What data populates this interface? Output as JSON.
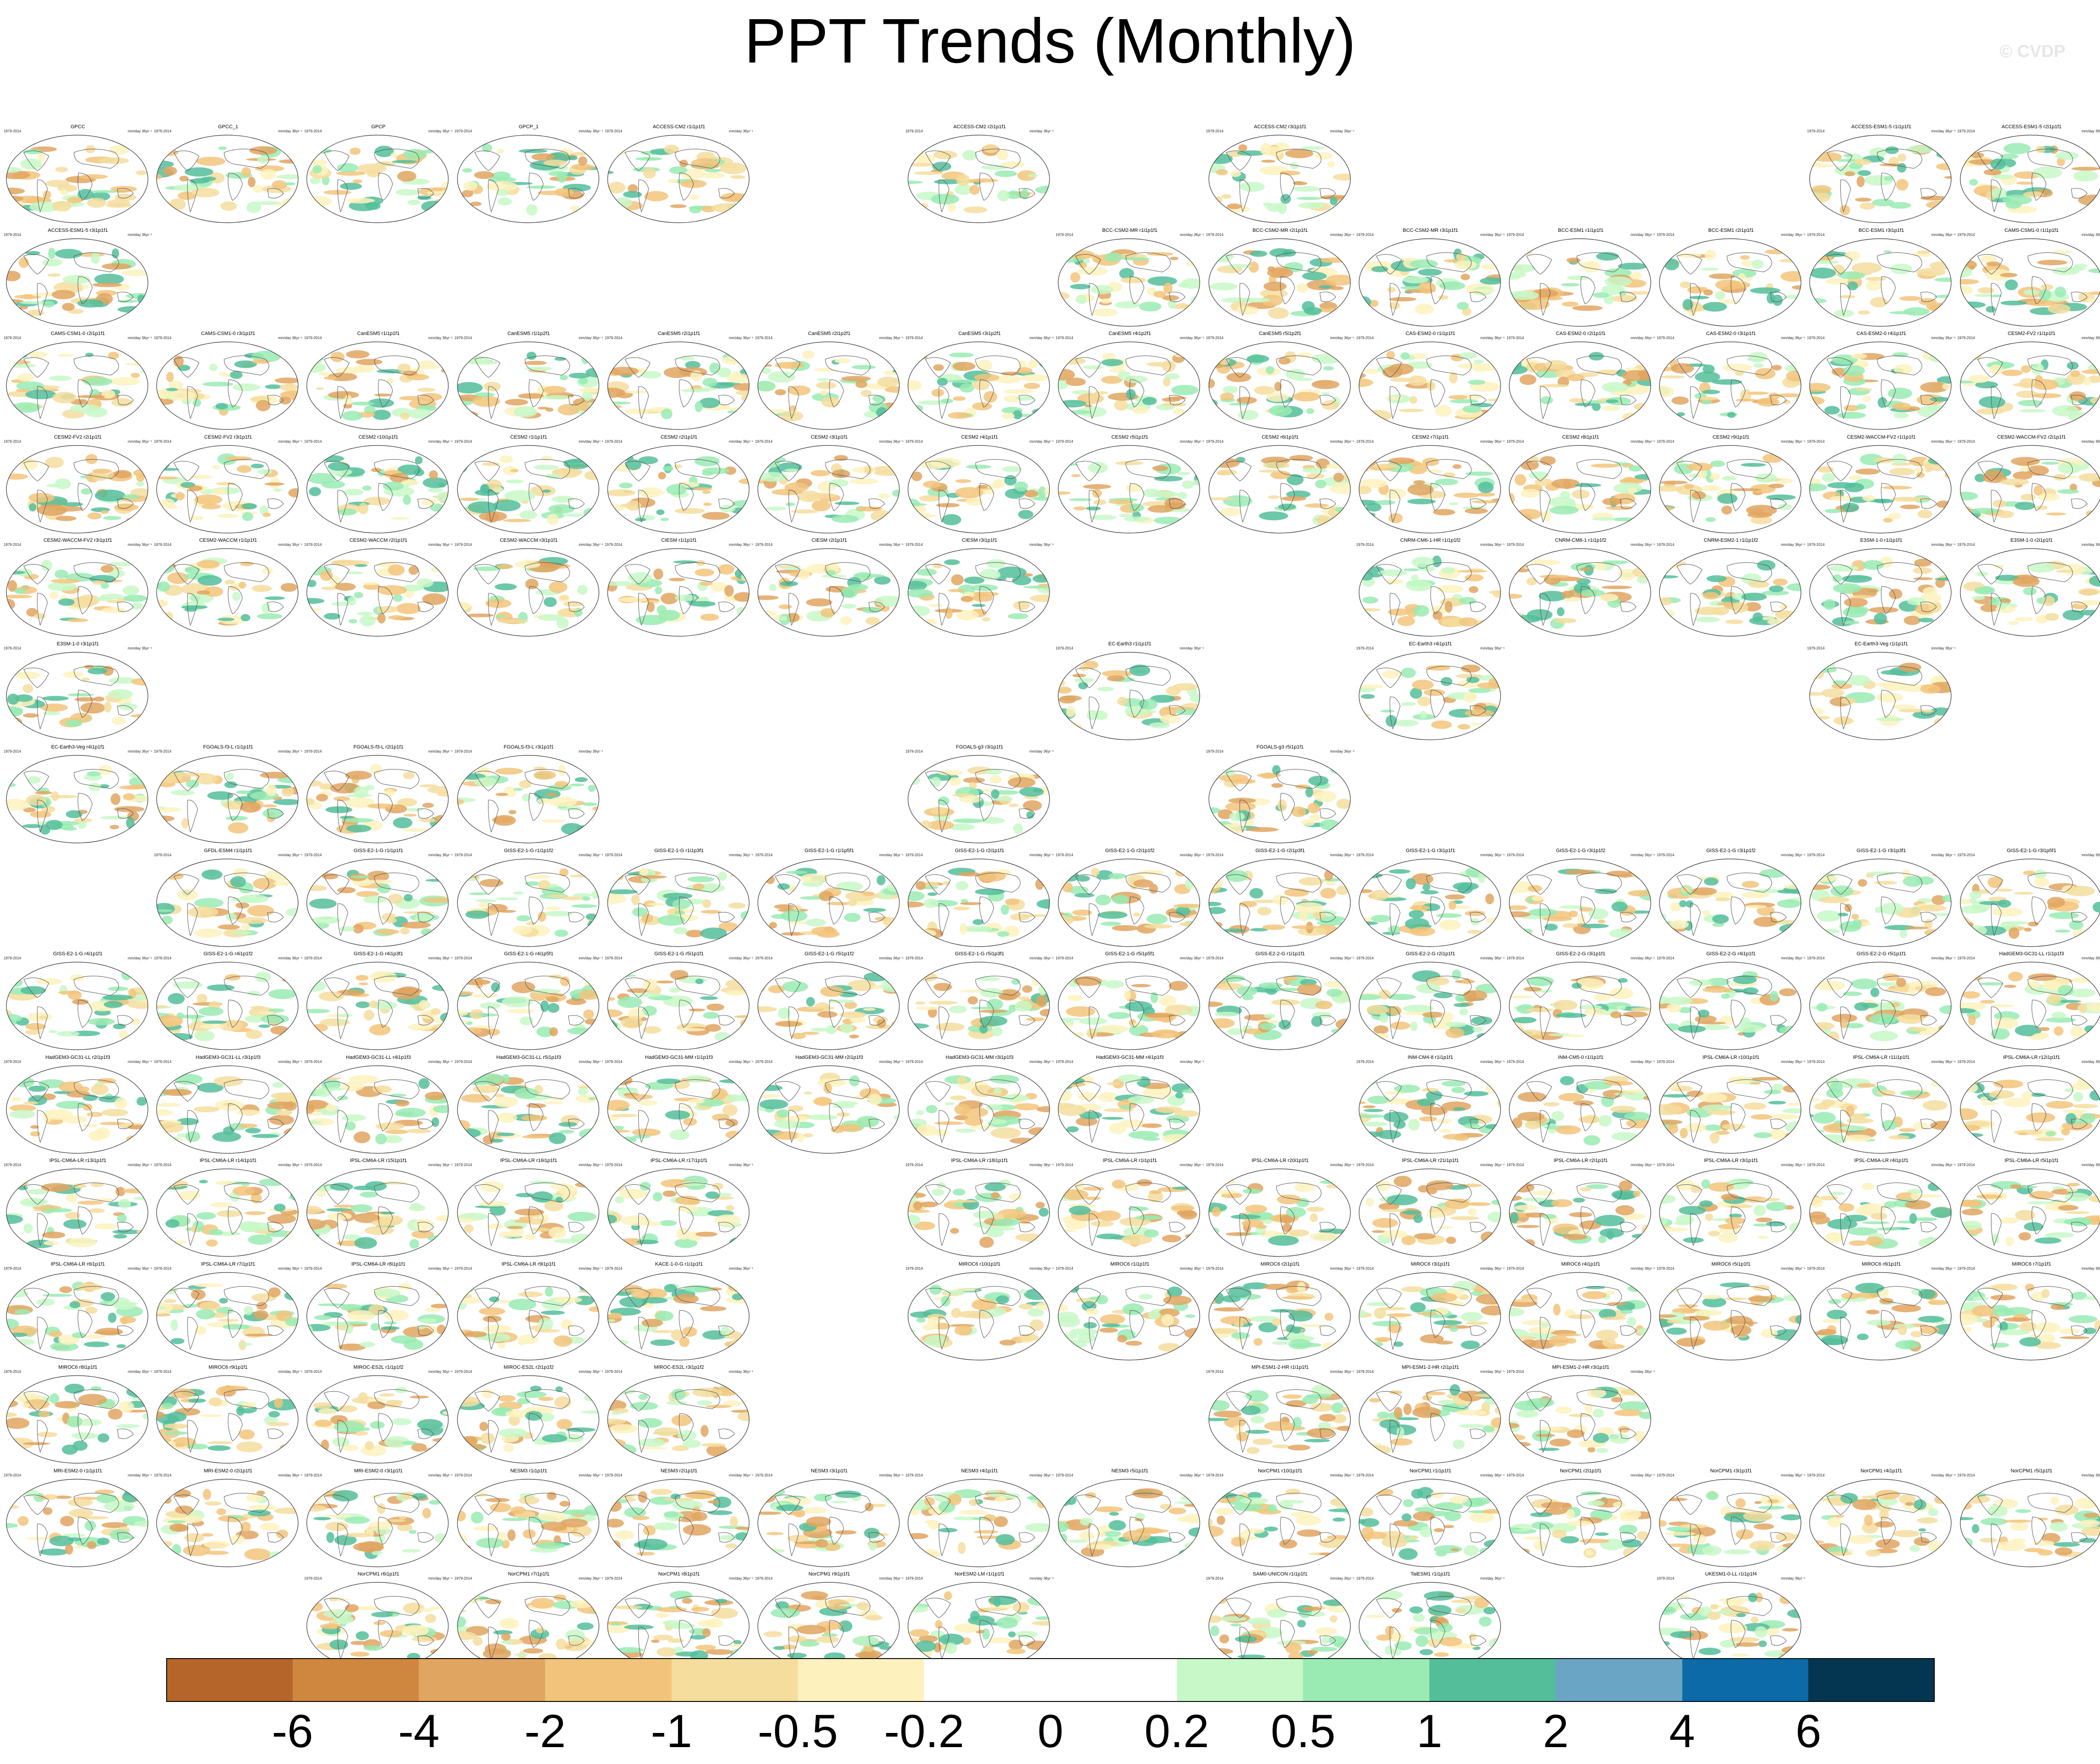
{
  "title": "PPT Trends (Monthly)",
  "watermark": "© CVDP",
  "panel_period": "1979-2014",
  "units": "mm/day 36yr⁻¹",
  "chart_data": {
    "type": "heatmap",
    "title": "PPT Trends (Monthly)",
    "projection": "global map panels",
    "colorbar": {
      "boundaries": [
        "-6",
        "-4",
        "-2",
        "-1",
        "-0.5",
        "-0.2",
        "0",
        "0.2",
        "0.5",
        "1",
        "2",
        "4",
        "6"
      ],
      "colors": [
        "#b5652a",
        "#cf863f",
        "#e0a560",
        "#f2c47b",
        "#f4dd9d",
        "#fdf2be",
        "#ffffff",
        "#ffffff",
        "#c8f8c8",
        "#99ebb3",
        "#54be9b",
        "#6aa5c6",
        "#0c6aa8",
        "#043651"
      ]
    },
    "rows": [
      [
        "GPCC",
        "GPCC_1",
        "GPCP",
        "GPCP_1",
        "ACCESS-CM2 r1i1p1f1",
        "",
        "ACCESS-CM2 r2i1p1f1",
        "",
        "ACCESS-CM2 r3i1p1f1",
        "",
        "",
        "",
        "ACCESS-ESM1-5 r1i1p1f1",
        "ACCESS-ESM1-5 r2i1p1f1"
      ],
      [
        "ACCESS-ESM1-5 r3i1p1f1",
        "",
        "",
        "",
        "",
        "",
        "",
        "BCC-CSM2-MR r1i1p1f1",
        "BCC-CSM2-MR r2i1p1f1",
        "BCC-CSM2-MR r3i1p1f1",
        "BCC-ESM1 r1i1p1f1",
        "BCC-ESM1 r2i1p1f1",
        "BCC-ESM1 r3i1p1f1",
        "CAMS-CSM1-0 r1i1p1f1"
      ],
      [
        "CAMS-CSM1-0 r2i1p1f1",
        "CAMS-CSM1-0 r3i1p1f1",
        "CanESM5 r1i1p1f1",
        "CanESM5 r1i1p2f1",
        "CanESM5 r2i1p1f1",
        "CanESM5 r2i1p2f1",
        "CanESM5 r3i1p2f1",
        "CanESM5 r4i1p2f1",
        "CanESM5 r5i1p2f1",
        "CAS-ESM2-0 r1i1p1f1",
        "CAS-ESM2-0 r2i1p1f1",
        "CAS-ESM2-0 r3i1p1f1",
        "CAS-ESM2-0 r4i1p1f1",
        "CESM2-FV2 r1i1p1f1"
      ],
      [
        "CESM2-FV2 r2i1p1f1",
        "CESM2-FV2 r3i1p1f1",
        "CESM2 r10i1p1f1",
        "CESM2 r1i1p1f1",
        "CESM2 r2i1p1f1",
        "CESM2 r3i1p1f1",
        "CESM2 r4i1p1f1",
        "CESM2 r5i1p1f1",
        "CESM2 r6i1p1f1",
        "CESM2 r7i1p1f1",
        "CESM2 r8i1p1f1",
        "CESM2 r9i1p1f1",
        "CESM2-WACCM-FV2 r1i1p1f1",
        "CESM2-WACCM-FV2 r2i1p1f1"
      ],
      [
        "CESM2-WACCM-FV2 r3i1p1f1",
        "CESM2-WACCM r1i1p1f1",
        "CESM2-WACCM r2i1p1f1",
        "CESM2-WACCM r3i1p1f1",
        "CIESM r1i1p1f1",
        "CIESM r2i1p1f1",
        "CIESM r3i1p1f1",
        "",
        "",
        "CNRM-CM6-1-HR r1i1p1f2",
        "CNRM-CM6-1 r1i1p1f2",
        "CNRM-ESM2-1 r1i1p1f2",
        "E3SM-1-0 r1i1p1f1",
        "E3SM-1-0 r2i1p1f1"
      ],
      [
        "E3SM-1-0 r3i1p1f1",
        "",
        "",
        "",
        "",
        "",
        "",
        "EC-Earth3 r1i1p1f1",
        "",
        "EC-Earth3 r4i1p1f1",
        "",
        "",
        "EC-Earth3-Veg r1i1p1f1",
        ""
      ],
      [
        "EC-Earth3-Veg r4i1p1f1",
        "FGOALS-f3-L r1i1p1f1",
        "FGOALS-f3-L r2i1p1f1",
        "FGOALS-f3-L r3i1p1f1",
        "",
        "",
        "FGOALS-g3 r3i1p1f1",
        "",
        "FGOALS-g3 r5i1p1f1",
        "",
        "",
        "",
        "",
        ""
      ],
      [
        "",
        "GFDL-ESM4 r1i1p1f1",
        "GISS-E2-1-G r1i1p1f1",
        "GISS-E2-1-G r1i1p1f2",
        "GISS-E2-1-G r1i1p3f1",
        "GISS-E2-1-G r1i1p5f1",
        "GISS-E2-1-G r2i1p1f1",
        "GISS-E2-1-G r2i1p1f2",
        "GISS-E2-1-G r2i1p3f1",
        "GISS-E2-1-G r3i1p1f1",
        "GISS-E2-1-G r3i1p1f2",
        "GISS-E2-1-G r3i1p1f2",
        "GISS-E2-1-G r3i1p3f1",
        "GISS-E2-1-G r3i1p5f1"
      ],
      [
        "GISS-E2-1-G r4i1p1f1",
        "GISS-E2-1-G r4i1p1f2",
        "GISS-E2-1-G r4i1p3f1",
        "GISS-E2-1-G r4i1p5f1",
        "GISS-E2-1-G r5i1p1f1",
        "GISS-E2-1-G r5i1p1f2",
        "GISS-E2-1-G r5i1p3f1",
        "GISS-E2-1-G r5i1p5f1",
        "GISS-E2-2-G r1i1p1f1",
        "GISS-E2-2-G r2i1p1f1",
        "GISS-E2-2-G r3i1p1f1",
        "GISS-E2-2-G r4i1p1f1",
        "GISS-E2-2-G r5i1p1f1",
        "HadGEM3-GC31-LL r1i1p1f3"
      ],
      [
        "HadGEM3-GC31-LL r2i1p1f3",
        "HadGEM3-GC31-LL r3i1p1f3",
        "HadGEM3-GC31-LL r4i1p1f3",
        "HadGEM3-GC31-LL r5i1p1f3",
        "HadGEM3-GC31-MM r1i1p1f3",
        "HadGEM3-GC31-MM r2i1p1f3",
        "HadGEM3-GC31-MM r3i1p1f3",
        "HadGEM3-GC31-MM r4i1p1f3",
        "",
        "INM-CM4-8 r1i1p1f1",
        "INM-CM5-0 r1i1p1f1",
        "IPSL-CM6A-LR r10i1p1f1",
        "IPSL-CM6A-LR r11i1p1f1",
        "IPSL-CM6A-LR r12i1p1f1"
      ],
      [
        "IPSL-CM6A-LR r13i1p1f1",
        "IPSL-CM6A-LR r14i1p1f1",
        "IPSL-CM6A-LR r15i1p1f1",
        "IPSL-CM6A-LR r16i1p1f1",
        "IPSL-CM6A-LR r17i1p1f1",
        "",
        "IPSL-CM6A-LR r18i1p1f1",
        "IPSL-CM6A-LR r1i1p1f1",
        "IPSL-CM6A-LR r20i1p1f1",
        "IPSL-CM6A-LR r21i1p1f1",
        "IPSL-CM6A-LR r2i1p1f1",
        "IPSL-CM6A-LR r3i1p1f1",
        "IPSL-CM6A-LR r4i1p1f1",
        "IPSL-CM6A-LR r5i1p1f1"
      ],
      [
        "IPSL-CM6A-LR r6i1p1f1",
        "IPSL-CM6A-LR r7i1p1f1",
        "IPSL-CM6A-LR r8i1p1f1",
        "IPSL-CM6A-LR r9i1p1f1",
        "KACE-1-0-G r1i1p1f1",
        "",
        "MIROC6 r10i1p1f1",
        "MIROC6 r1i1p1f1",
        "MIROC6 r2i1p1f1",
        "MIROC6 r3i1p1f1",
        "MIROC6 r4i1p1f1",
        "MIROC6 r5i1p1f1",
        "MIROC6 r6i1p1f1",
        "MIROC6 r7i1p1f1"
      ],
      [
        "MIROC6 r8i1p1f1",
        "MIROC6 r9i1p1f1",
        "MIROC-ES2L r1i1p1f2",
        "MIROC-ES2L r2i1p1f2",
        "MIROC-ES2L r3i1p1f2",
        "",
        "",
        "",
        "MPI-ESM1-2-HR r1i1p1f1",
        "MPI-ESM1-2-HR r2i1p1f1",
        "MPI-ESM1-2-HR r3i1p1f1",
        "",
        "",
        ""
      ],
      [
        "MRI-ESM2-0 r1i1p1f1",
        "MRI-ESM2-0 r2i1p1f1",
        "MRI-ESM2-0 r3i1p1f1",
        "NESM3 r1i1p1f1",
        "NESM3 r2i1p1f1",
        "NESM3 r3i1p1f1",
        "NESM3 r4i1p1f1",
        "NESM3 r5i1p1f1",
        "NorCPM1 r10i1p1f1",
        "NorCPM1 r1i1p1f1",
        "NorCPM1 r2i1p1f1",
        "NorCPM1 r3i1p1f1",
        "NorCPM1 r4i1p1f1",
        "NorCPM1 r5i1p1f1"
      ],
      [
        "",
        "",
        "NorCPM1 r6i1p1f1",
        "NorCPM1 r7i1p1f1",
        "NorCPM1 r8i1p1f1",
        "NorCPM1 r9i1p1f1",
        "NorESM2-LM r1i1p1f1",
        "",
        "SAM0-UNICON r1i1p1f1",
        "TaiESM1 r1i1p1f1",
        "",
        "UKESM1-0-LL r1i1p1f4",
        "",
        ""
      ]
    ]
  }
}
